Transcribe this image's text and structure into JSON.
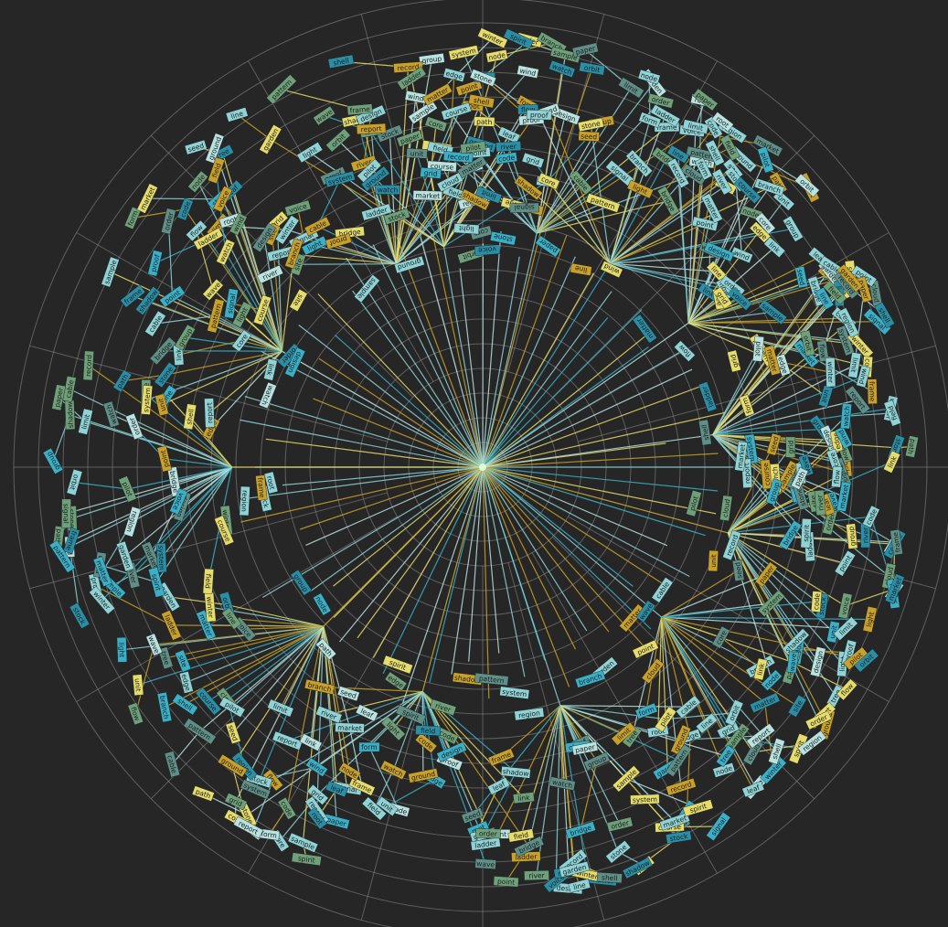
{
  "diagram": {
    "type": "radial-tree",
    "background": "#262626",
    "grid": true,
    "palette": {
      "light_cyan": "#8fd3d6",
      "cyan": "#3ab0c8",
      "deep_cyan": "#2a8fa6",
      "teal_gray": "#5f8f86",
      "green": "#6ea07a",
      "yellow": "#e5dc6c",
      "gold": "#c9a12a",
      "pale": "#b9e3e1"
    },
    "hubs": [
      {
        "angle": 247,
        "children": 28
      },
      {
        "angle": 260,
        "children": 18
      },
      {
        "angle": 283,
        "children": 22
      },
      {
        "angle": 302,
        "children": 26
      },
      {
        "angle": 325,
        "children": 30
      },
      {
        "angle": 352,
        "children": 34
      },
      {
        "angle": 15,
        "children": 30
      },
      {
        "angle": 40,
        "children": 26
      },
      {
        "angle": 72,
        "children": 30
      },
      {
        "angle": 105,
        "children": 22
      },
      {
        "angle": 135,
        "children": 32
      },
      {
        "angle": 180,
        "children": 24
      },
      {
        "angle": 210,
        "children": 30
      }
    ],
    "visible_labels": [
      "site",
      "light",
      "ground",
      "report",
      "ladder",
      "proof",
      "stone",
      "path",
      "wind",
      "stock",
      "shadow",
      "group",
      "bridge",
      "point",
      "order",
      "river",
      "design",
      "watch",
      "field",
      "course",
      "signal",
      "voice",
      "market",
      "frame",
      "pattern",
      "cable",
      "system",
      "sample",
      "spirit",
      "cloud",
      "region",
      "matter",
      "winter",
      "limit",
      "paper",
      "record",
      "shell",
      "pilot",
      "orbit",
      "garden",
      "line",
      "tree",
      "seed",
      "code",
      "form",
      "node",
      "branch",
      "leaf",
      "root",
      "edge",
      "unit",
      "grid",
      "core",
      "link",
      "wave",
      "flow"
    ]
  }
}
